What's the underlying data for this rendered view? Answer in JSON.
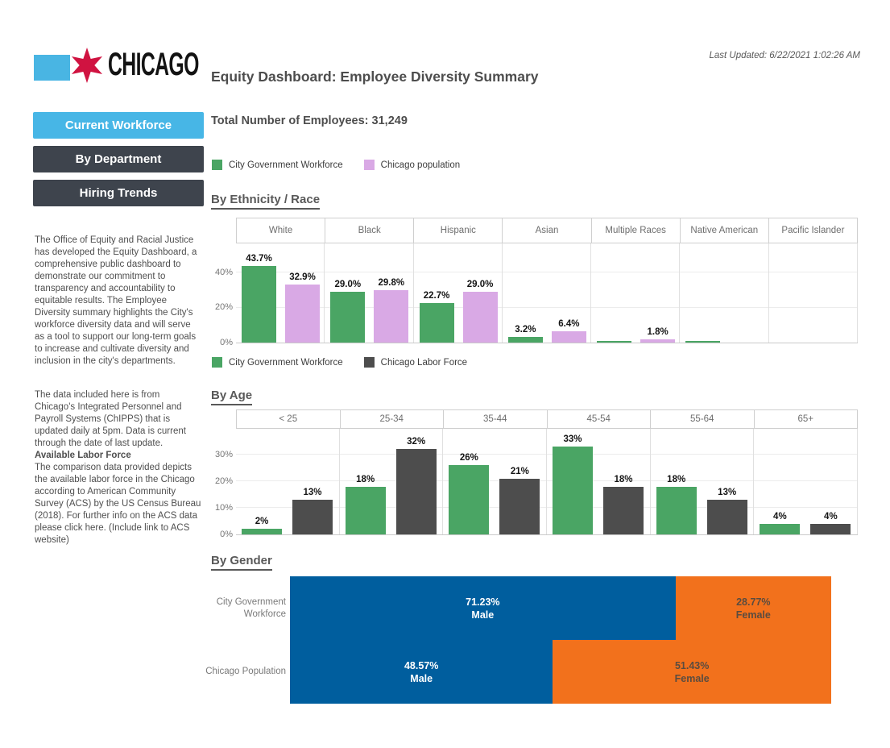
{
  "colors": {
    "chicago_light_blue": "#47b6e6",
    "chicago_red": "#d01341",
    "nav_dark": "#3e444d",
    "workforce_green": "#4aa564",
    "population_purple": "#d9a9e5",
    "labor_force_gray": "#4d4d4d",
    "male_blue": "#005e9e",
    "female_orange": "#f2711c"
  },
  "header": {
    "logo_text": "CHICAGO",
    "title": "Equity Dashboard: Employee Diversity Summary",
    "last_updated": "Last Updated: 6/22/2021 1:02:26 AM"
  },
  "sidebar": {
    "buttons": [
      {
        "label": "Current Workforce"
      },
      {
        "label": "By Department"
      },
      {
        "label": "Hiring Trends"
      }
    ],
    "about_text": "The Office of Equity and Racial Justice has developed the Equity Dashboard, a comprehensive public dashboard to demonstrate our commitment to transparency and accountability to equitable results. The Employee Diversity summary highlights the City's workforce diversity data and will serve as a tool to support our long-term goals to increase and cultivate diversity and inclusion in the city's departments.",
    "data_source_text": "The data included here is from Chicago's Integrated Personnel and Payroll Systems (ChIPPS) that is updated daily at 5pm. Data is current through the date of last update.",
    "labor_force_heading": "Available Labor Force",
    "labor_force_text": "The comparison data provided depicts the available labor force in the Chicago according to American Community Survey (ACS) by the US Census Bureau (2018). For further info on the ACS data please click here. (Include link to ACS website)"
  },
  "main": {
    "total_employees": "Total Number of Employees: 31,249",
    "section_ethnicity": "By Ethnicity / Race",
    "section_age": "By Age",
    "section_gender": "By Gender"
  },
  "chart_data": [
    {
      "id": "ethnicity",
      "type": "bar",
      "title": "By Ethnicity / Race",
      "legend": [
        {
          "name": "City Government Workforce",
          "color": "#4aa564"
        },
        {
          "name": "Chicago population",
          "color": "#d9a9e5"
        }
      ],
      "legend_position": "top",
      "grid": true,
      "categories": [
        "White",
        "Black",
        "Hispanic",
        "Asian",
        "Multiple Races",
        "Native American",
        "Pacific Islander"
      ],
      "series": [
        {
          "name": "City Government Workforce",
          "color": "#4aa564",
          "values": [
            43.7,
            29.0,
            22.7,
            3.2,
            0.8,
            0.7,
            0
          ],
          "labels": [
            "43.7%",
            "29.0%",
            "22.7%",
            "3.2%",
            "",
            "",
            ""
          ]
        },
        {
          "name": "Chicago population",
          "color": "#d9a9e5",
          "values": [
            32.9,
            29.8,
            29.0,
            6.4,
            1.8,
            0,
            0
          ],
          "labels": [
            "32.9%",
            "29.8%",
            "29.0%",
            "6.4%",
            "1.8%",
            "",
            ""
          ]
        }
      ],
      "xlabel": "",
      "ylabel": "",
      "ylim": [
        0,
        57
      ],
      "yticks": [
        {
          "value": 0,
          "label": "0%"
        },
        {
          "value": 20,
          "label": "20%"
        },
        {
          "value": 40,
          "label": "40%"
        }
      ]
    },
    {
      "id": "age",
      "type": "bar",
      "title": "By Age",
      "legend": [
        {
          "name": "City Government Workforce",
          "color": "#4aa564"
        },
        {
          "name": "Chicago Labor Force",
          "color": "#4d4d4d"
        }
      ],
      "legend_position": "top",
      "grid": true,
      "categories": [
        "< 25",
        "25-34",
        "35-44",
        "45-54",
        "55-64",
        "65+"
      ],
      "series": [
        {
          "name": "City Government Workforce",
          "color": "#4aa564",
          "values": [
            2,
            18,
            26,
            33,
            18,
            4
          ],
          "labels": [
            "2%",
            "18%",
            "26%",
            "33%",
            "18%",
            "4%"
          ]
        },
        {
          "name": "Chicago Labor Force",
          "color": "#4d4d4d",
          "values": [
            13,
            32,
            21,
            18,
            13,
            4
          ],
          "labels": [
            "13%",
            "32%",
            "21%",
            "18%",
            "13%",
            "4%"
          ]
        }
      ],
      "xlabel": "",
      "ylabel": "",
      "ylim": [
        0,
        40
      ],
      "yticks": [
        {
          "value": 0,
          "label": "0%"
        },
        {
          "value": 10,
          "label": "10%"
        },
        {
          "value": 20,
          "label": "20%"
        },
        {
          "value": 30,
          "label": "30%"
        }
      ]
    },
    {
      "id": "gender",
      "type": "stacked-bar-horizontal",
      "title": "By Gender",
      "xlim": [
        0,
        100
      ],
      "rows": [
        {
          "label": "City Government Workforce",
          "segments": [
            {
              "name": "Male",
              "value": 71.23,
              "label": "71.23%",
              "sublabel": "Male",
              "color": "#005e9e",
              "text_color": "#ffffff"
            },
            {
              "name": "Female",
              "value": 28.77,
              "label": "28.77%",
              "sublabel": "Female",
              "color": "#f2711c",
              "text_color": "#5b4c3f"
            }
          ]
        },
        {
          "label": "Chicago Population",
          "segments": [
            {
              "name": "Male",
              "value": 48.57,
              "label": "48.57%",
              "sublabel": "Male",
              "color": "#005e9e",
              "text_color": "#ffffff"
            },
            {
              "name": "Female",
              "value": 51.43,
              "label": "51.43%",
              "sublabel": "Female",
              "color": "#f2711c",
              "text_color": "#5b4c3f"
            }
          ]
        }
      ]
    }
  ]
}
